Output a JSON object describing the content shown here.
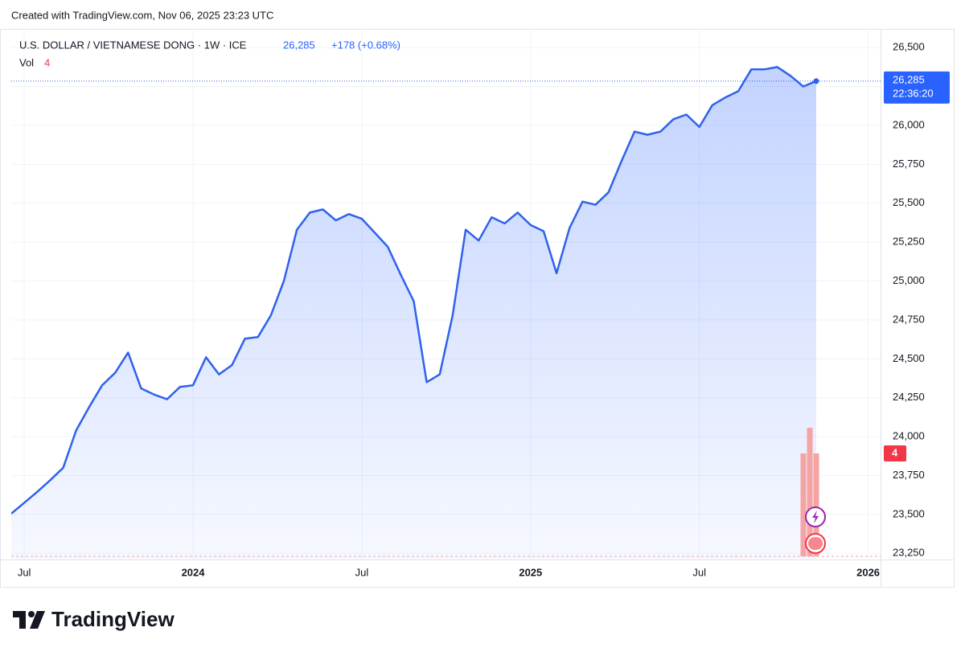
{
  "chart_data": {
    "type": "area",
    "watermark": "Created with TradingView.com, Nov 06, 2025 23:23 UTC",
    "title": "U.S. DOLLAR / VIETNAMESE DONG · 1W · ICE",
    "change": "+178 (+0.68%)",
    "volume_title": "Vol",
    "time_label": "22:36:20",
    "brand": "TradingView",
    "categories": [
      null,
      "Jul",
      null,
      null,
      null,
      null,
      null,
      null,
      null,
      null,
      null,
      null,
      null,
      null,
      "2024",
      null,
      null,
      null,
      null,
      null,
      null,
      null,
      null,
      null,
      null,
      null,
      null,
      "Jul",
      null,
      null,
      null,
      null,
      null,
      null,
      null,
      null,
      null,
      null,
      null,
      null,
      "2025",
      null,
      null,
      null,
      null,
      null,
      null,
      null,
      null,
      null,
      null,
      null,
      null,
      "Jul",
      null,
      null,
      null,
      null,
      null,
      null,
      null,
      null,
      null,
      null,
      null,
      null,
      "2026"
    ],
    "series": [
      {
        "name": "USD/VND",
        "color": "#2f62ec",
        "values": [
          23505,
          23575,
          23645,
          23720,
          23800,
          24040,
          24190,
          24330,
          24410,
          24540,
          24310,
          24270,
          24240,
          24320,
          24330,
          24510,
          24400,
          24460,
          24630,
          24640,
          24780,
          25000,
          25330,
          25440,
          25460,
          25390,
          25430,
          25400,
          25310,
          25220,
          25040,
          24870,
          24350,
          24400,
          24780,
          25330,
          25260,
          25410,
          25370,
          25440,
          25360,
          25320,
          25050,
          25340,
          25510,
          25490,
          25570,
          25770,
          25960,
          25940,
          25960,
          26040,
          26070,
          25990,
          26130,
          26180,
          26220,
          26360,
          26360,
          26375,
          26320,
          26250,
          26285,
          null,
          null,
          null,
          null
        ],
        "value_labels": [
          null,
          null,
          null,
          null,
          null,
          null,
          null,
          null,
          null,
          null,
          null,
          null,
          null,
          null,
          null,
          null,
          null,
          null,
          null,
          null,
          null,
          null,
          null,
          null,
          null,
          null,
          null,
          null,
          null,
          null,
          null,
          null,
          null,
          null,
          null,
          null,
          null,
          null,
          null,
          null,
          null,
          null,
          null,
          null,
          null,
          null,
          null,
          null,
          null,
          null,
          null,
          null,
          null,
          null,
          null,
          null,
          null,
          null,
          null,
          null,
          null,
          null,
          "26,285",
          null,
          null,
          null,
          null
        ]
      }
    ],
    "volume": {
      "color": "#f5a3a3",
      "values": [
        4,
        5,
        4
      ]
    },
    "ylim": [
      23210,
      26620
    ],
    "yticks": [
      {
        "value": 23250,
        "label": "23,250"
      },
      {
        "value": 23500,
        "label": "23,500"
      },
      {
        "value": 23750,
        "label": "23,750"
      },
      {
        "value": 24000,
        "label": "24,000"
      },
      {
        "value": 24250,
        "label": "24,250"
      },
      {
        "value": 24500,
        "label": "24,500"
      },
      {
        "value": 24750,
        "label": "24,750"
      },
      {
        "value": 25000,
        "label": "25,000"
      },
      {
        "value": 25250,
        "label": "25,250"
      },
      {
        "value": 25500,
        "label": "25,500"
      },
      {
        "value": 25750,
        "label": "25,750"
      },
      {
        "value": 26000,
        "label": "26,000"
      },
      {
        "value": 26250,
        "label": "26,250"
      },
      {
        "value": 26500,
        "label": "26,500"
      }
    ],
    "grid": true
  }
}
